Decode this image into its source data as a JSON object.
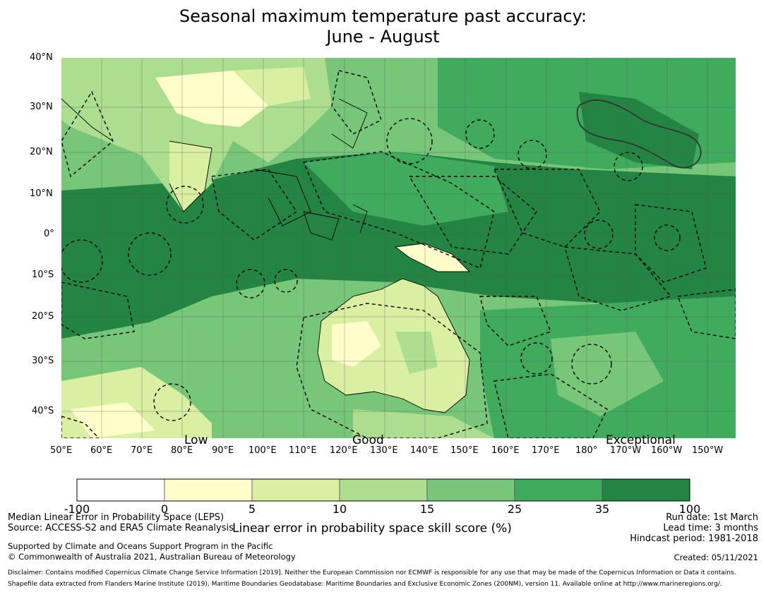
{
  "title": {
    "line1": "Seasonal maximum temperature past accuracy:",
    "line2": "June - August"
  },
  "map": {
    "lat_labels": [
      "40°N",
      "30°N",
      "20°N",
      "10°N",
      "0°",
      "10°S",
      "20°S",
      "30°S",
      "40°S"
    ],
    "lon_labels": [
      "50°E",
      "60°E",
      "70°E",
      "80°E",
      "90°E",
      "100°E",
      "110°E",
      "120°E",
      "130°E",
      "140°E",
      "150°E",
      "160°E",
      "170°E",
      "180°",
      "170°W",
      "160°W",
      "150°W"
    ],
    "category_labels": [
      "Low",
      "Good",
      "Exceptional"
    ]
  },
  "colorbar": {
    "ticks": [
      "-100",
      "0",
      "5",
      "10",
      "15",
      "25",
      "35",
      "100"
    ],
    "colors": [
      "#ffffff",
      "#ffffcc",
      "#d9f0a3",
      "#addd8e",
      "#78c679",
      "#41ab5d",
      "#238443"
    ],
    "label": "Linear error in probability space skill score (%)"
  },
  "footer": {
    "left1": "Median Linear Error in Probability Space (LEPS)",
    "left2": "Source: ACCESS-S2 and ERA5 Climate Reanalysis",
    "left3": "Supported by Climate and Oceans Support Program in the Pacific",
    "left4": "© Commonwealth of Australia 2021, Australian Bureau of Meteorology",
    "right1": "Run date: 1st March",
    "right2": "Lead time: 3 months",
    "right3": "Hindcast period: 1981-2018",
    "right4": "Created: 05/11/2021",
    "disclaimer1": "Disclaimer: Contains modified Copernicus Climate Change Service Information [2019]. Neither the European Commission nor ECMWF is responsible for any use that may be made of the Copernicus Information or Data it contains.",
    "disclaimer2": "Shapefile data extracted from Flanders Marine Institute (2019), Maritime Boundaries Geodatabase: Maritime Boundaries and Exclusive Economic Zones (200NM), version 11. Available online at http://www.marineregions.org/."
  }
}
